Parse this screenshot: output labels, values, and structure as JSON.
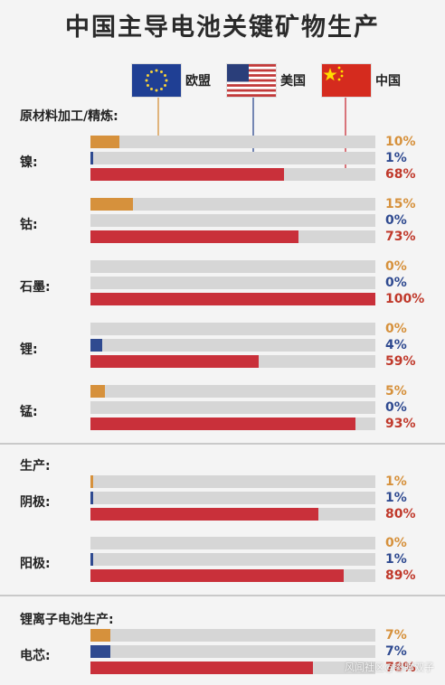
{
  "title": "中国主导电池关键矿物生产",
  "colors": {
    "eu": "#d6913c",
    "us": "#2f4a90",
    "cn": "#c9303a"
  },
  "legend": [
    {
      "key": "eu",
      "label": "欧盟",
      "flag": "eu-flag-icon"
    },
    {
      "key": "us",
      "label": "美国",
      "flag": "us-flag-icon"
    },
    {
      "key": "cn",
      "label": "中国",
      "flag": "china-flag-icon"
    }
  ],
  "sections": [
    {
      "title": "原材料加工/精炼:"
    },
    {
      "title": "生产:"
    },
    {
      "title": "锂离子电池生产:"
    }
  ],
  "watermark": "风闻社区@睿眸双子",
  "chart_data": {
    "type": "bar",
    "orientation": "horizontal",
    "title": "中国主导电池关键矿物生产",
    "xlim": [
      0,
      100
    ],
    "series_names": [
      "欧盟",
      "美国",
      "中国"
    ],
    "groups": [
      {
        "section": "原材料加工/精炼:",
        "label": "镍:",
        "values": {
          "eu": 10,
          "us": 1,
          "cn": 68
        },
        "labels": {
          "eu": "10%",
          "us": "1%",
          "cn": "68%"
        }
      },
      {
        "section": "原材料加工/精炼:",
        "label": "钴:",
        "values": {
          "eu": 15,
          "us": 0,
          "cn": 73
        },
        "labels": {
          "eu": "15%",
          "us": "0%",
          "cn": "73%"
        }
      },
      {
        "section": "原材料加工/精炼:",
        "label": "石墨:",
        "values": {
          "eu": 0,
          "us": 0,
          "cn": 100
        },
        "labels": {
          "eu": "0%",
          "us": "0%",
          "cn": "100%"
        }
      },
      {
        "section": "原材料加工/精炼:",
        "label": "锂:",
        "values": {
          "eu": 0,
          "us": 4,
          "cn": 59
        },
        "labels": {
          "eu": "0%",
          "us": "4%",
          "cn": "59%"
        }
      },
      {
        "section": "原材料加工/精炼:",
        "label": "锰:",
        "values": {
          "eu": 5,
          "us": 0,
          "cn": 93
        },
        "labels": {
          "eu": "5%",
          "us": "0%",
          "cn": "93%"
        }
      },
      {
        "section": "生产:",
        "label": "阴极:",
        "values": {
          "eu": 1,
          "us": 1,
          "cn": 80
        },
        "labels": {
          "eu": "1%",
          "us": "1%",
          "cn": "80%"
        }
      },
      {
        "section": "生产:",
        "label": "阳极:",
        "values": {
          "eu": 0,
          "us": 1,
          "cn": 89
        },
        "labels": {
          "eu": "0%",
          "us": "1%",
          "cn": "89%"
        }
      },
      {
        "section": "锂离子电池生产:",
        "label": "电芯:",
        "values": {
          "eu": 7,
          "us": 7,
          "cn": 78
        },
        "labels": {
          "eu": "7%",
          "us": "7%",
          "cn": "78%"
        }
      }
    ]
  }
}
